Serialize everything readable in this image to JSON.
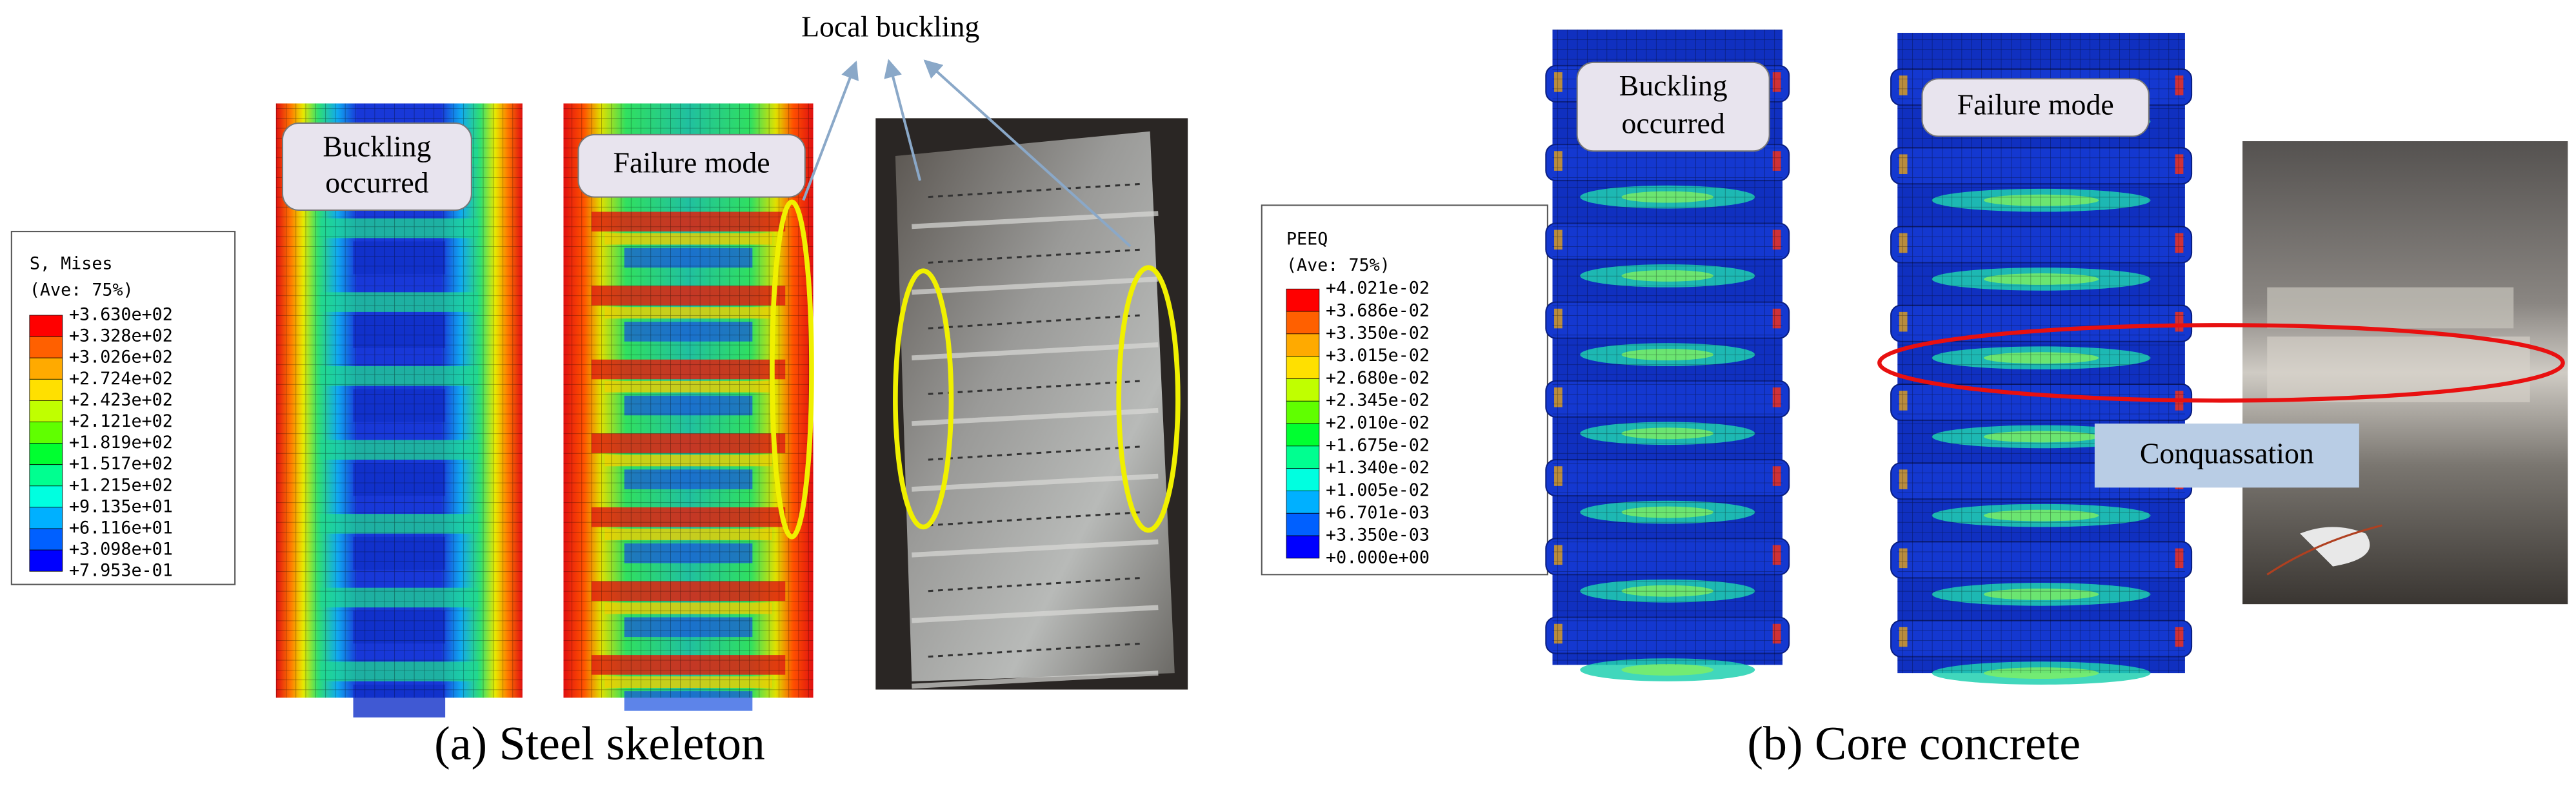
{
  "panel_a": {
    "legend": {
      "title": "S, Mises",
      "subtitle": "(Ave: 75%)",
      "labels": [
        "+3.630e+02",
        "+3.328e+02",
        "+3.026e+02",
        "+2.724e+02",
        "+2.423e+02",
        "+2.121e+02",
        "+1.819e+02",
        "+1.517e+02",
        "+1.215e+02",
        "+9.135e+01",
        "+6.116e+01",
        "+3.098e+01",
        "+7.953e-01"
      ]
    },
    "buckling_occurred": [
      "Buckling",
      "occurred"
    ],
    "failure_mode": "Failure mode",
    "local_buckling": "Local buckling",
    "caption": "(a) Steel skeleton"
  },
  "panel_b": {
    "legend": {
      "title": "PEEQ",
      "subtitle": "(Ave: 75%)",
      "labels": [
        "+4.021e-02",
        "+3.686e-02",
        "+3.350e-02",
        "+3.015e-02",
        "+2.680e-02",
        "+2.345e-02",
        "+2.010e-02",
        "+1.675e-02",
        "+1.340e-02",
        "+1.005e-02",
        "+6.701e-03",
        "+3.350e-03",
        "+0.000e+00"
      ]
    },
    "buckling_occurred": [
      "Buckling",
      "occurred"
    ],
    "failure_mode": "Failure mode",
    "conquassation": "Conquassation",
    "caption": "(b) Core concrete"
  }
}
